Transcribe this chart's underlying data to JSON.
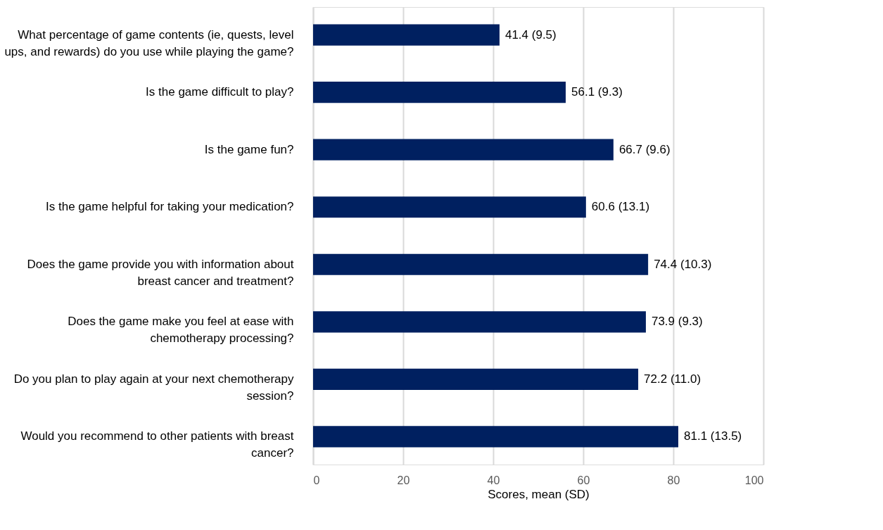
{
  "chart_data": {
    "type": "bar",
    "orientation": "horizontal",
    "xlabel": "Scores, mean (SD)",
    "categories": [
      "What percentage of game contents (ie, quests, level ups, and rewards) do you use while playing the game?",
      "Is the game difficult to play?",
      "Is the game fun?",
      "Is the game helpful for taking your medication?",
      "Does the game provide you with information about breast cancer and treatment?",
      "Does the game make you feel at ease with chemotherapy processing?",
      "Do you plan to play again at your next chemotherapy session?",
      "Would you recommend to other patients with breast cancer?"
    ],
    "values": [
      41.4,
      56.1,
      66.7,
      60.6,
      74.4,
      73.9,
      72.2,
      81.1
    ],
    "value_labels": [
      "41.4 (9.5)",
      "56.1 (9.3)",
      "66.7 (9.6)",
      "60.6 (13.1)",
      "74.4 (10.3)",
      "73.9 (9.3)",
      "72.2 (11.0)",
      "81.1 (13.5)"
    ],
    "color": "#002060",
    "xlim": [
      0,
      100
    ],
    "xticks": [
      0,
      20,
      40,
      60,
      80,
      100
    ],
    "grid": "x"
  }
}
